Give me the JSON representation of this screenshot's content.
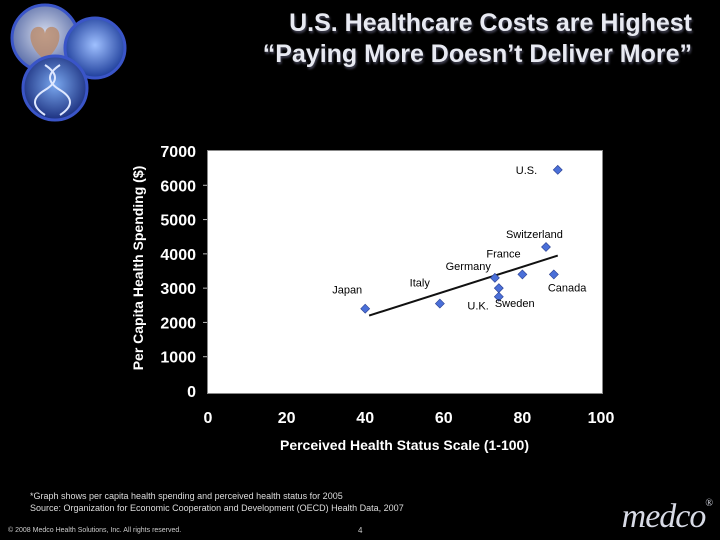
{
  "header": {
    "title_line1": "U.S. Healthcare Costs are Highest",
    "title_line2": "“Paying More Doesn’t Deliver More”"
  },
  "chart_data": {
    "type": "scatter",
    "xlabel": "Perceived Health Status Scale (1-100)",
    "ylabel": "Per Capita Health Spending ($)",
    "xlim": [
      0,
      100
    ],
    "ylim": [
      0,
      7000
    ],
    "xticks": [
      "0",
      "20",
      "40",
      "60",
      "80",
      "100"
    ],
    "yticks": [
      "0",
      "1000",
      "2000",
      "3000",
      "4000",
      "5000",
      "6000",
      "7000"
    ],
    "grid": false,
    "points": [
      {
        "label": "Japan",
        "x": 40,
        "y": 2400
      },
      {
        "label": "Italy",
        "x": 59,
        "y": 2550
      },
      {
        "label": "U.K.",
        "x": 74,
        "y": 2750
      },
      {
        "label": "Germany",
        "x": 73,
        "y": 3300
      },
      {
        "label": "Sweden",
        "x": 74,
        "y": 3000
      },
      {
        "label": "France",
        "x": 80,
        "y": 3400
      },
      {
        "label": "Canada",
        "x": 88,
        "y": 3400
      },
      {
        "label": "Switzerland",
        "x": 86,
        "y": 4200
      },
      {
        "label": "U.S.",
        "x": 89,
        "y": 6450
      }
    ],
    "trendline": {
      "x": [
        41,
        89
      ],
      "y": [
        2200,
        3950
      ]
    },
    "marker_color": "#4a6fd8"
  },
  "footer": {
    "footnote_line1": "*Graph shows per capita health spending and perceived health status for 2005",
    "footnote_line2": "Source: Organization for Economic Cooperation and Development (OECD) Health Data, 2007",
    "copyright": "© 2008 Medco Health Solutions, Inc. All rights reserved.",
    "page_number": "4",
    "brand": "medco",
    "brand_mark": "®"
  }
}
